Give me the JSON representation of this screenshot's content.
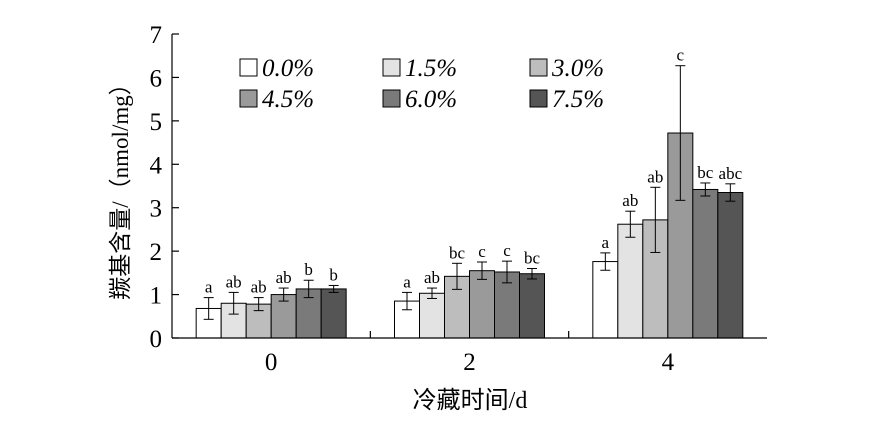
{
  "chart_data": {
    "type": "bar",
    "title": "",
    "xlabel": "冷藏时间/d",
    "ylabel": "羰基含量/（nmol/mg）",
    "ylim": [
      0,
      7
    ],
    "yticks": [
      "0",
      "1",
      "2",
      "3",
      "4",
      "5",
      "6",
      "7"
    ],
    "categories": [
      "0",
      "2",
      "4"
    ],
    "legend_position": "top-left, inside plot, 3 columns",
    "grid": false,
    "series": [
      {
        "name": "0.0%",
        "color": "#ffffff",
        "values": [
          0.68,
          0.85,
          1.76
        ],
        "errors": [
          0.25,
          0.2,
          0.2
        ],
        "letters": [
          "a",
          "a",
          "a"
        ]
      },
      {
        "name": "1.5%",
        "color": "#e3e3e3",
        "values": [
          0.8,
          1.03,
          2.62
        ],
        "errors": [
          0.25,
          0.12,
          0.3
        ],
        "letters": [
          "ab",
          "ab",
          "ab"
        ]
      },
      {
        "name": "3.0%",
        "color": "#bdbdbd",
        "values": [
          0.78,
          1.42,
          2.72
        ],
        "errors": [
          0.15,
          0.3,
          0.75
        ],
        "letters": [
          "ab",
          "bc",
          "ab"
        ]
      },
      {
        "name": "4.5%",
        "color": "#9a9a9a",
        "values": [
          1.0,
          1.55,
          4.72
        ],
        "errors": [
          0.15,
          0.2,
          1.55
        ],
        "letters": [
          "ab",
          "c",
          "c"
        ]
      },
      {
        "name": "6.0%",
        "color": "#7a7a7a",
        "values": [
          1.13,
          1.52,
          3.42
        ],
        "errors": [
          0.2,
          0.25,
          0.15
        ],
        "letters": [
          "b",
          "c",
          "bc"
        ]
      },
      {
        "name": "7.5%",
        "color": "#555555",
        "values": [
          1.13,
          1.48,
          3.35
        ],
        "errors": [
          0.08,
          0.12,
          0.2
        ],
        "letters": [
          "b",
          "bc",
          "abc"
        ]
      }
    ]
  }
}
